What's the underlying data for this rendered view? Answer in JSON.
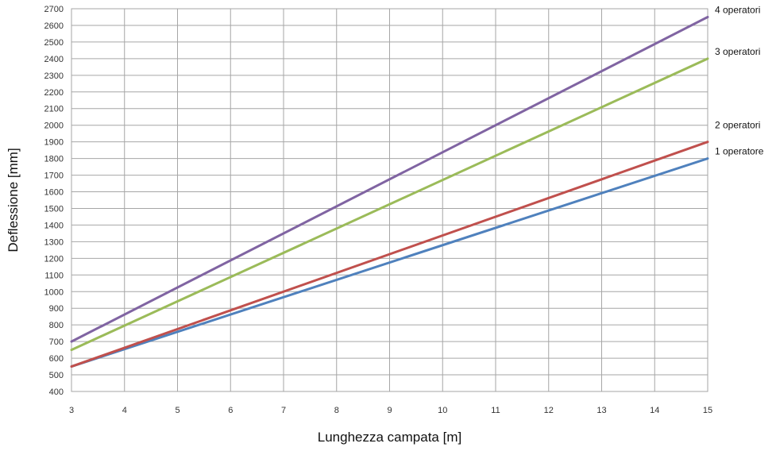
{
  "chart_data": {
    "type": "line",
    "title": "",
    "xlabel": "Lunghezza campata [m]",
    "ylabel": "Deflessione [mm]",
    "xlim": [
      3,
      15
    ],
    "ylim": [
      400,
      2700
    ],
    "x_ticks": [
      3,
      4,
      5,
      6,
      7,
      8,
      9,
      10,
      11,
      12,
      13,
      14,
      15
    ],
    "y_ticks": [
      400,
      500,
      600,
      700,
      800,
      900,
      1000,
      1100,
      1200,
      1300,
      1400,
      1500,
      1600,
      1700,
      1800,
      1900,
      2000,
      2100,
      2200,
      2300,
      2400,
      2500,
      2600,
      2700
    ],
    "grid": true,
    "legend": "line-end labels",
    "series": [
      {
        "name": "1 operatore",
        "color": "#4f81bd",
        "x": [
          3,
          15
        ],
        "values": [
          550,
          1800
        ]
      },
      {
        "name": "2 operatori",
        "color": "#c0504d",
        "x": [
          3,
          15
        ],
        "values": [
          550,
          1900
        ]
      },
      {
        "name": "3 operatori",
        "color": "#9bbb59",
        "x": [
          3,
          15
        ],
        "values": [
          650,
          2400
        ]
      },
      {
        "name": "4 operatori",
        "color": "#8064a2",
        "x": [
          3,
          15
        ],
        "values": [
          700,
          2650
        ]
      }
    ]
  }
}
